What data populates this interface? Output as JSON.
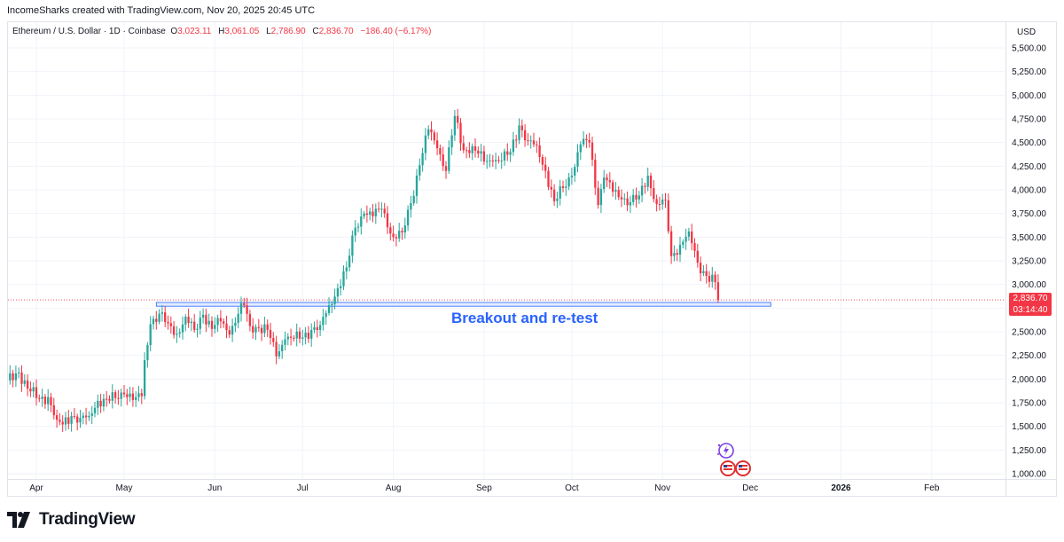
{
  "header": {
    "credit": "IncomeSharks created with TradingView.com, Nov 20, 2025 20:45 UTC"
  },
  "legend": {
    "symbol": "Ethereum / U.S. Dollar · 1D · Coinbase",
    "open_label": "O",
    "open_value": "3,023.11",
    "high_label": "H",
    "high_value": "3,061.05",
    "low_label": "L",
    "low_value": "2,786.90",
    "close_label": "C",
    "close_value": "2,836.70",
    "change": "−186.40 (−6.17%)"
  },
  "price_axis": {
    "currency": "USD",
    "last_price": "2,836.70",
    "countdown": "03:14:40"
  },
  "annotation": {
    "text": "Breakout and re-test"
  },
  "brand": {
    "name": "TradingView"
  },
  "colors": {
    "up": "#26a69a",
    "down": "#f23645",
    "zone_fill": "#d6e4ff",
    "zone_border": "#2962ff",
    "annotation": "#2962ff"
  },
  "icons": [
    "tradingview-logo-icon",
    "lightning-event-icon",
    "us-flag-event-icon"
  ],
  "chart_data": {
    "type": "candlestick",
    "title": "",
    "xlabel": "",
    "ylabel": "",
    "ylim": [
      900,
      5600
    ],
    "y_ticks": [
      1000,
      1250,
      1500,
      1750,
      2000,
      2250,
      2500,
      2750,
      3000,
      3250,
      3500,
      3750,
      4000,
      4250,
      4500,
      4750,
      5000,
      5250,
      5500
    ],
    "y_tick_labels": [
      "1,000.00",
      "1,250.00",
      "1,500.00",
      "1,750.00",
      "2,000.00",
      "2,250.00",
      "2,500.00",
      "2,750.00",
      "3,000.00",
      "3,250.00",
      "3,500.00",
      "3,750.00",
      "4,000.00",
      "4,250.00",
      "4,500.00",
      "4,750.00",
      "5,000.00",
      "5,250.00",
      "5,500.00"
    ],
    "x_tick_labels": [
      "Apr",
      "May",
      "Jun",
      "Jul",
      "Aug",
      "Sep",
      "Oct",
      "Nov",
      "Dec",
      "2026",
      "Feb"
    ],
    "x_tick_dates": [
      "2025-04-01",
      "2025-05-01",
      "2025-06-01",
      "2025-07-01",
      "2025-08-01",
      "2025-09-01",
      "2025-10-01",
      "2025-11-01",
      "2025-12-01",
      "2026-01-01",
      "2026-02-01"
    ],
    "last_price": 2836.7,
    "support_zone": {
      "y_low": 2770,
      "y_high": 2810,
      "x_start": "2025-05-12",
      "x_end": "2025-12-08"
    },
    "series": [
      {
        "name": "ETH/USD daily close",
        "points": [
          [
            "2025-03-22",
            1985
          ],
          [
            "2025-03-26",
            2070
          ],
          [
            "2025-03-29",
            1900
          ],
          [
            "2025-04-02",
            1790
          ],
          [
            "2025-04-05",
            1810
          ],
          [
            "2025-04-08",
            1570
          ],
          [
            "2025-04-10",
            1520
          ],
          [
            "2025-04-13",
            1610
          ],
          [
            "2025-04-16",
            1590
          ],
          [
            "2025-04-19",
            1610
          ],
          [
            "2025-04-22",
            1770
          ],
          [
            "2025-04-25",
            1790
          ],
          [
            "2025-04-28",
            1800
          ],
          [
            "2025-05-01",
            1840
          ],
          [
            "2025-05-05",
            1810
          ],
          [
            "2025-05-07",
            1820
          ],
          [
            "2025-05-08",
            2200
          ],
          [
            "2025-05-10",
            2580
          ],
          [
            "2025-05-13",
            2690
          ],
          [
            "2025-05-16",
            2590
          ],
          [
            "2025-05-19",
            2480
          ],
          [
            "2025-05-22",
            2660
          ],
          [
            "2025-05-25",
            2520
          ],
          [
            "2025-05-28",
            2680
          ],
          [
            "2025-05-31",
            2530
          ],
          [
            "2025-06-03",
            2610
          ],
          [
            "2025-06-06",
            2470
          ],
          [
            "2025-06-09",
            2690
          ],
          [
            "2025-06-11",
            2780
          ],
          [
            "2025-06-13",
            2560
          ],
          [
            "2025-06-16",
            2540
          ],
          [
            "2025-06-19",
            2520
          ],
          [
            "2025-06-22",
            2240
          ],
          [
            "2025-06-25",
            2420
          ],
          [
            "2025-06-28",
            2430
          ],
          [
            "2025-07-01",
            2440
          ],
          [
            "2025-07-04",
            2520
          ],
          [
            "2025-07-07",
            2570
          ],
          [
            "2025-07-10",
            2780
          ],
          [
            "2025-07-13",
            2960
          ],
          [
            "2025-07-16",
            3180
          ],
          [
            "2025-07-19",
            3600
          ],
          [
            "2025-07-22",
            3750
          ],
          [
            "2025-07-25",
            3720
          ],
          [
            "2025-07-28",
            3800
          ],
          [
            "2025-08-01",
            3500
          ],
          [
            "2025-08-04",
            3550
          ],
          [
            "2025-08-07",
            3860
          ],
          [
            "2025-08-10",
            4260
          ],
          [
            "2025-08-13",
            4640
          ],
          [
            "2025-08-16",
            4440
          ],
          [
            "2025-08-19",
            4200
          ],
          [
            "2025-08-22",
            4780
          ],
          [
            "2025-08-25",
            4420
          ],
          [
            "2025-08-28",
            4460
          ],
          [
            "2025-09-01",
            4300
          ],
          [
            "2025-09-04",
            4300
          ],
          [
            "2025-09-07",
            4310
          ],
          [
            "2025-09-10",
            4400
          ],
          [
            "2025-09-13",
            4680
          ],
          [
            "2025-09-16",
            4520
          ],
          [
            "2025-09-19",
            4470
          ],
          [
            "2025-09-22",
            4200
          ],
          [
            "2025-09-25",
            3880
          ],
          [
            "2025-09-28",
            4020
          ],
          [
            "2025-10-01",
            4150
          ],
          [
            "2025-10-04",
            4480
          ],
          [
            "2025-10-07",
            4500
          ],
          [
            "2025-10-10",
            3840
          ],
          [
            "2025-10-12",
            4130
          ],
          [
            "2025-10-15",
            3980
          ],
          [
            "2025-10-18",
            3900
          ],
          [
            "2025-10-21",
            3870
          ],
          [
            "2025-10-24",
            3940
          ],
          [
            "2025-10-27",
            4150
          ],
          [
            "2025-10-30",
            3850
          ],
          [
            "2025-11-02",
            3890
          ],
          [
            "2025-11-04",
            3300
          ],
          [
            "2025-11-07",
            3420
          ],
          [
            "2025-11-10",
            3560
          ],
          [
            "2025-11-13",
            3230
          ],
          [
            "2025-11-16",
            3090
          ],
          [
            "2025-11-19",
            3023
          ],
          [
            "2025-11-20",
            2836.7
          ]
        ]
      }
    ]
  }
}
